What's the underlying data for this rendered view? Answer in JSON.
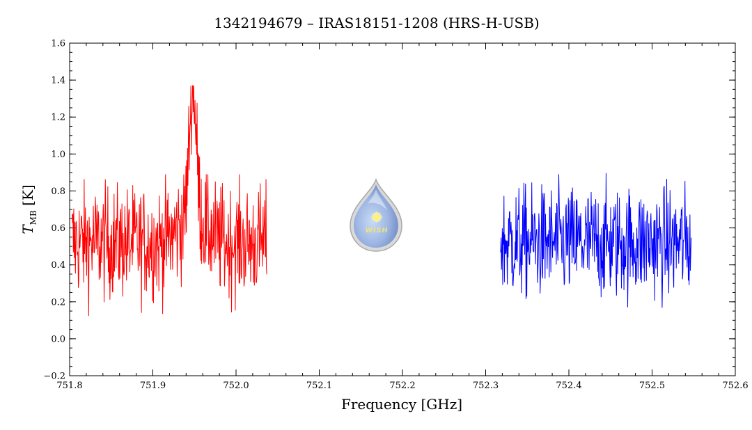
{
  "chart_data": {
    "type": "line",
    "title": "1342194679 – IRAS18151-1208 (HRS-H-USB)",
    "xlabel": "Frequency [GHz]",
    "ylabel_main": "T",
    "ylabel_subscript": "MB",
    "ylabel_unit": " [K]",
    "xlim": [
      751.8,
      752.6
    ],
    "ylim": [
      -0.2,
      1.6
    ],
    "x_ticks": [
      751.8,
      751.9,
      752.0,
      752.1,
      752.2,
      752.3,
      752.4,
      752.5,
      752.6
    ],
    "x_tick_labels": [
      "751.8",
      "751.9",
      "752.0",
      "752.1",
      "752.2",
      "752.3",
      "752.4",
      "752.5",
      "752.6"
    ],
    "x_minor_step": 0.02,
    "y_ticks": [
      -0.2,
      0.0,
      0.2,
      0.4,
      0.6,
      0.8,
      1.0,
      1.2,
      1.4,
      1.6
    ],
    "y_tick_labels": [
      "−0.2",
      "0.0",
      "0.2",
      "0.4",
      "0.6",
      "0.8",
      "1.0",
      "1.2",
      "1.4",
      "1.6"
    ],
    "y_minor_step": 0.05,
    "grid": false,
    "legend": "none",
    "series": [
      {
        "color": "#ff0000",
        "x_range": [
          751.803,
          752.037
        ],
        "n_points": 470,
        "baseline": 0.52,
        "noise_amplitude": 0.15,
        "noise_min": 0.06,
        "noise_max": 0.89,
        "line_peak": 1.37,
        "line_center": 751.948,
        "line_width": 0.004,
        "wing_amplitude": 0.17,
        "wing_width": 0.014
      },
      {
        "color": "#0000ff",
        "x_range": [
          752.318,
          752.547
        ],
        "n_points": 460,
        "baseline": 0.52,
        "noise_amplitude": 0.15,
        "noise_min": 0.02,
        "noise_max": 0.96,
        "line_peak": 0,
        "line_center": 752.43,
        "line_width": 0.004,
        "wing_amplitude": 0,
        "wing_width": 0.014
      }
    ]
  },
  "logo": {
    "icon": "wish-water-drop-logo",
    "text": "WISH"
  }
}
